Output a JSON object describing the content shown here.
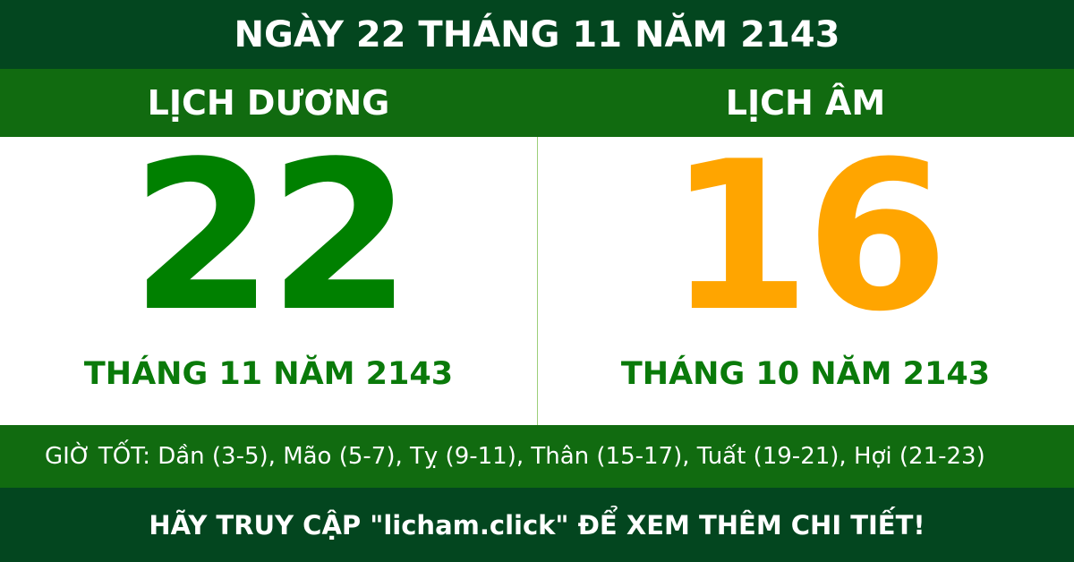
{
  "header": {
    "title": "NGÀY 22 THÁNG 11 NĂM 2143"
  },
  "solar": {
    "label": "LỊCH DƯƠNG",
    "day": "22",
    "month_year": "THÁNG 11 NĂM 2143"
  },
  "lunar": {
    "label": "LỊCH ÂM",
    "day": "16",
    "month_year": "THÁNG 10 NĂM 2143"
  },
  "good_hours": "GIỜ TỐT: Dần (3-5), Mão (5-7), Tỵ (9-11), Thân (15-17), Tuất (19-21), Hợi (21-23)",
  "footer": {
    "cta": "HÃY TRUY CẬP \"licham.click\" ĐỂ XEM THÊM CHI TIẾT!"
  },
  "colors": {
    "dark_green": "#03461f",
    "green": "#116b10",
    "solar_number": "#008000",
    "lunar_number": "#ffa500"
  }
}
